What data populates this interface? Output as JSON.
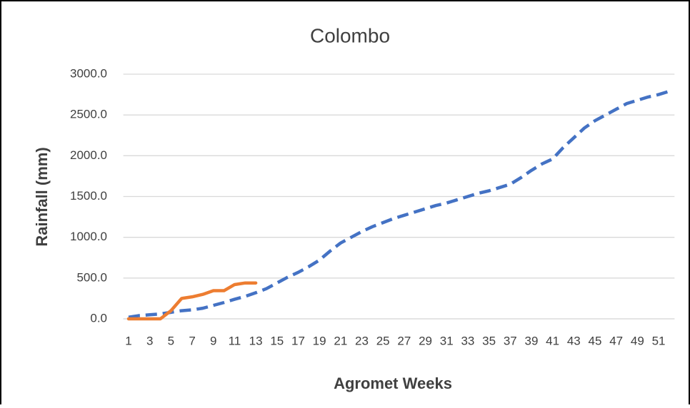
{
  "chart_data": {
    "type": "line",
    "title": "Colombo",
    "x_label": "Agromet Weeks",
    "y_label": "Rainfall (mm)",
    "categories": [
      "1",
      null,
      "3",
      null,
      "5",
      null,
      "7",
      null,
      "9",
      null,
      "11",
      null,
      "13",
      null,
      "15",
      null,
      "17",
      null,
      "19",
      null,
      "21",
      null,
      "23",
      null,
      "25",
      null,
      "27",
      null,
      "29",
      null,
      "31",
      null,
      "33",
      null,
      "35",
      null,
      "37",
      null,
      "39",
      null,
      "41",
      null,
      "43",
      null,
      "45",
      null,
      "47",
      null,
      "49",
      null,
      "51",
      null
    ],
    "series": [
      {
        "color": "#4472c4",
        "dashed": true,
        "values": [
          20,
          40,
          50,
          60,
          80,
          100,
          110,
          130,
          165,
          200,
          240,
          275,
          320,
          370,
          440,
          510,
          570,
          640,
          720,
          830,
          930,
          1000,
          1070,
          1130,
          1180,
          1230,
          1270,
          1310,
          1350,
          1390,
          1420,
          1460,
          1500,
          1540,
          1570,
          1610,
          1650,
          1730,
          1820,
          1900,
          1960,
          2100,
          2220,
          2340,
          2430,
          2500,
          2570,
          2640,
          2680,
          2720,
          2750,
          2790
        ]
      },
      {
        "color": "#ed7d31",
        "dashed": false,
        "values": [
          0,
          0,
          0,
          0,
          100,
          250,
          270,
          300,
          345,
          345,
          420,
          440,
          440,
          null,
          null,
          null,
          null,
          null,
          null,
          null,
          null,
          null,
          null,
          null,
          null,
          null,
          null,
          null,
          null,
          null,
          null,
          null,
          null,
          null,
          null,
          null,
          null,
          null,
          null,
          null,
          null,
          null,
          null,
          null,
          null,
          null,
          null,
          null,
          null,
          null,
          null,
          null
        ]
      }
    ],
    "ylim": [
      0,
      3000
    ],
    "yticks": [
      {
        "value": 0,
        "label": "0.0"
      },
      {
        "value": 500,
        "label": "500.0"
      },
      {
        "value": 1000,
        "label": "1000.0"
      },
      {
        "value": 1500,
        "label": "1500.0"
      },
      {
        "value": 2000,
        "label": "2000.0"
      },
      {
        "value": 2500,
        "label": "2500.0"
      },
      {
        "value": 3000,
        "label": "3000.0"
      }
    ],
    "grid": true
  }
}
